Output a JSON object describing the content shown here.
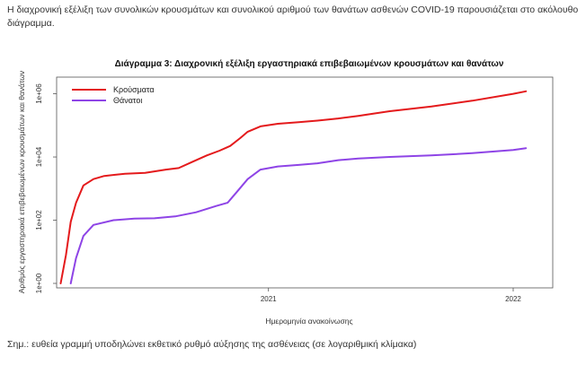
{
  "intro_text": "Η διαχρονική εξέλιξη των συνολικών κρουσμάτων και συνολικού αριθμού των θανάτων ασθενών COVID-19 παρουσιάζεται στο ακόλουθο διάγραμμα.",
  "footnote": "Σημ.: ευθεία γραμμή υποδηλώνει εκθετικό ρυθμό αύξησης της ασθένειας (σε λογαριθμική κλίμακα)",
  "chart_data": {
    "type": "line",
    "title": "Διάγραμμα 3: Διαχρονική εξέλιξη εργαστηριακά επιβεβαιωμένων κρουσμάτων και θανάτων",
    "xlabel": "Ημερομηνία ανακοίνωσης",
    "ylabel": "Αριθμός εργαστηριακά επιβεβαιωμένων κρουσμάτων και θανάτων",
    "y_scale": "log10",
    "ylim_log10": [
      0,
      6.3
    ],
    "xlim": [
      "2020-02-20",
      "2022-03-01"
    ],
    "x_ticks": [
      {
        "date": "2021-01-01",
        "label": "2021"
      },
      {
        "date": "2022-01-01",
        "label": "2022"
      }
    ],
    "y_ticks": [
      {
        "log10": 0,
        "label": "1e+00"
      },
      {
        "log10": 2,
        "label": "1e+02"
      },
      {
        "log10": 4,
        "label": "1e+04"
      },
      {
        "log10": 6,
        "label": "1e+06"
      }
    ],
    "grid": false,
    "legend_position": "top-left",
    "series": [
      {
        "name": "Κρούσματα",
        "color": "#e41a1c",
        "x": [
          "2020-02-26",
          "2020-03-05",
          "2020-03-12",
          "2020-03-20",
          "2020-03-31",
          "2020-04-15",
          "2020-05-01",
          "2020-06-01",
          "2020-07-01",
          "2020-08-01",
          "2020-08-20",
          "2020-09-10",
          "2020-10-01",
          "2020-10-20",
          "2020-11-05",
          "2020-11-20",
          "2020-12-01",
          "2020-12-20",
          "2021-01-15",
          "2021-02-15",
          "2021-03-15",
          "2021-04-15",
          "2021-05-15",
          "2021-07-01",
          "2021-09-01",
          "2021-11-01",
          "2022-01-01",
          "2022-01-20"
        ],
        "y_log10": [
          0,
          0.9,
          1.95,
          2.55,
          3.1,
          3.3,
          3.4,
          3.47,
          3.5,
          3.6,
          3.65,
          3.85,
          4.05,
          4.2,
          4.35,
          4.6,
          4.8,
          4.97,
          5.05,
          5.1,
          5.15,
          5.22,
          5.3,
          5.45,
          5.6,
          5.78,
          6.0,
          6.08
        ]
      },
      {
        "name": "Θάνατοι",
        "color": "#8e44e6",
        "x": [
          "2020-03-12",
          "2020-03-20",
          "2020-03-31",
          "2020-04-15",
          "2020-05-15",
          "2020-06-15",
          "2020-07-15",
          "2020-08-15",
          "2020-09-15",
          "2020-10-15",
          "2020-11-01",
          "2020-11-15",
          "2020-12-01",
          "2020-12-20",
          "2021-01-15",
          "2021-02-15",
          "2021-03-15",
          "2021-04-15",
          "2021-05-15",
          "2021-07-01",
          "2021-09-01",
          "2021-11-01",
          "2022-01-01",
          "2022-01-20"
        ],
        "y_log10": [
          0,
          0.8,
          1.5,
          1.85,
          2.0,
          2.05,
          2.06,
          2.12,
          2.25,
          2.45,
          2.55,
          2.9,
          3.3,
          3.6,
          3.7,
          3.75,
          3.8,
          3.9,
          3.95,
          4.0,
          4.05,
          4.12,
          4.22,
          4.28
        ]
      }
    ]
  }
}
